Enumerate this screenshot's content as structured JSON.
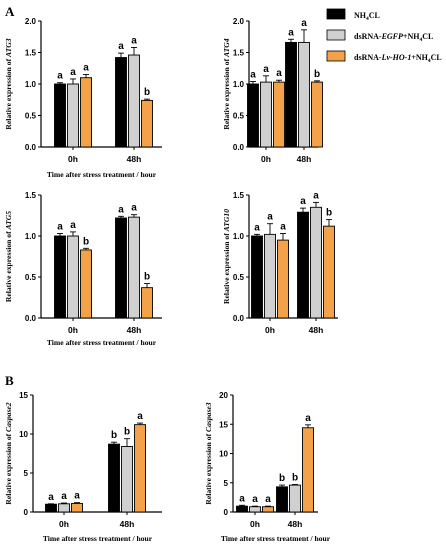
{
  "panel_labels": [
    "A",
    "B"
  ],
  "legend": [
    {
      "label_pre": "NH",
      "label_sub": "4",
      "label_post": "CL",
      "color": "#000000"
    },
    {
      "label_pre": "dsRNA-",
      "label_italic": "EGFP",
      "label_mid": "+NH",
      "label_sub": "4",
      "label_post": "CL",
      "color": "#d0d0d0"
    },
    {
      "label_pre": "dsRNA-",
      "label_italic": "Lv-HO-1",
      "label_mid": "+NH",
      "label_sub": "4",
      "label_post": "CL",
      "color": "#f4a24a"
    }
  ],
  "chart_data": [
    {
      "type": "bar",
      "ylabel_prefix": "Relative expression of ",
      "ylabel_gene": "ATG3",
      "xlabel": "Time after stress treatment / hour",
      "categories": [
        "0h",
        "48h"
      ],
      "ylim": [
        0,
        2.0
      ],
      "yticks": [
        "0.0",
        "0.5",
        "1.0",
        "1.5",
        "2.0"
      ],
      "series": [
        {
          "values": [
            1.0,
            1.42
          ],
          "errors": [
            0.02,
            0.07
          ],
          "letters": [
            "a",
            "a"
          ]
        },
        {
          "values": [
            1.0,
            1.46
          ],
          "errors": [
            0.08,
            0.12
          ],
          "letters": [
            "a",
            "a"
          ]
        },
        {
          "values": [
            1.1,
            0.74
          ],
          "errors": [
            0.05,
            0.02
          ],
          "letters": [
            "a",
            "b"
          ]
        }
      ]
    },
    {
      "type": "bar",
      "ylabel_prefix": "Relative expression of ",
      "ylabel_gene": "ATG4",
      "xlabel": "",
      "categories": [
        "0h",
        "48h"
      ],
      "ylim": [
        0,
        2.0
      ],
      "yticks": [
        "0.0",
        "0.5",
        "1.0",
        "1.5",
        "2.0"
      ],
      "series": [
        {
          "values": [
            1.0,
            1.66
          ],
          "errors": [
            0.04,
            0.05
          ],
          "letters": [
            "a",
            "a"
          ]
        },
        {
          "values": [
            1.03,
            1.66
          ],
          "errors": [
            0.1,
            0.2
          ],
          "letters": [
            "a",
            "a"
          ]
        },
        {
          "values": [
            1.03,
            1.03
          ],
          "errors": [
            0.03,
            0.02
          ],
          "letters": [
            "a",
            "b"
          ]
        }
      ]
    },
    {
      "type": "bar",
      "ylabel_prefix": "Relative expression of ",
      "ylabel_gene": "ATG5",
      "xlabel": "Time after stress treatment / hour",
      "categories": [
        "0h",
        "48h"
      ],
      "ylim": [
        0,
        1.5
      ],
      "yticks": [
        "0.0",
        "0.5",
        "1.0",
        "1.5"
      ],
      "series": [
        {
          "values": [
            1.0,
            1.22
          ],
          "errors": [
            0.03,
            0.02
          ],
          "letters": [
            "a",
            "a"
          ]
        },
        {
          "values": [
            1.0,
            1.23
          ],
          "errors": [
            0.05,
            0.03
          ],
          "letters": [
            "a",
            "a"
          ]
        },
        {
          "values": [
            0.83,
            0.37
          ],
          "errors": [
            0.02,
            0.05
          ],
          "letters": [
            "b",
            "b"
          ]
        }
      ]
    },
    {
      "type": "bar",
      "ylabel_prefix": "Relative expression of ",
      "ylabel_gene": "ATG10",
      "xlabel": "",
      "categories": [
        "0h",
        "48h"
      ],
      "ylim": [
        0,
        1.5
      ],
      "yticks": [
        "0.0",
        "0.5",
        "1.0",
        "1.5"
      ],
      "series": [
        {
          "values": [
            1.0,
            1.29
          ],
          "errors": [
            0.02,
            0.05
          ],
          "letters": [
            "a",
            "a"
          ]
        },
        {
          "values": [
            1.02,
            1.35
          ],
          "errors": [
            0.13,
            0.06
          ],
          "letters": [
            "a",
            "a"
          ]
        },
        {
          "values": [
            0.95,
            1.12
          ],
          "errors": [
            0.08,
            0.08
          ],
          "letters": [
            "a",
            "b"
          ]
        }
      ]
    },
    {
      "type": "bar",
      "ylabel_prefix": "Relative expression of ",
      "ylabel_gene": "Caspase2",
      "xlabel": "Time after stress treatment / hour",
      "categories": [
        "0h",
        "48h"
      ],
      "ylim": [
        0,
        15
      ],
      "yticks": [
        "0",
        "5",
        "10",
        "15"
      ],
      "series": [
        {
          "values": [
            1.0,
            8.7
          ],
          "errors": [
            0.05,
            0.25
          ],
          "letters": [
            "a",
            "b"
          ]
        },
        {
          "values": [
            1.05,
            8.4
          ],
          "errors": [
            0.1,
            1.0
          ],
          "letters": [
            "a",
            "b"
          ]
        },
        {
          "values": [
            1.1,
            11.2
          ],
          "errors": [
            0.1,
            0.2
          ],
          "letters": [
            "a",
            "a"
          ]
        }
      ]
    },
    {
      "type": "bar",
      "ylabel_prefix": "Relative expression of ",
      "ylabel_gene": "Caspase3",
      "xlabel": "Time after stress treatment / hour",
      "categories": [
        "0h",
        "48h"
      ],
      "ylim": [
        0,
        20
      ],
      "yticks": [
        "0",
        "5",
        "10",
        "15",
        "20"
      ],
      "series": [
        {
          "values": [
            1.0,
            4.3
          ],
          "errors": [
            0.15,
            0.3
          ],
          "letters": [
            "a",
            "b"
          ]
        },
        {
          "values": [
            0.9,
            4.6
          ],
          "errors": [
            0.1,
            0.1
          ],
          "letters": [
            "a",
            "b"
          ]
        },
        {
          "values": [
            0.9,
            14.4
          ],
          "errors": [
            0.1,
            0.5
          ],
          "letters": [
            "a",
            "a"
          ]
        }
      ]
    }
  ]
}
